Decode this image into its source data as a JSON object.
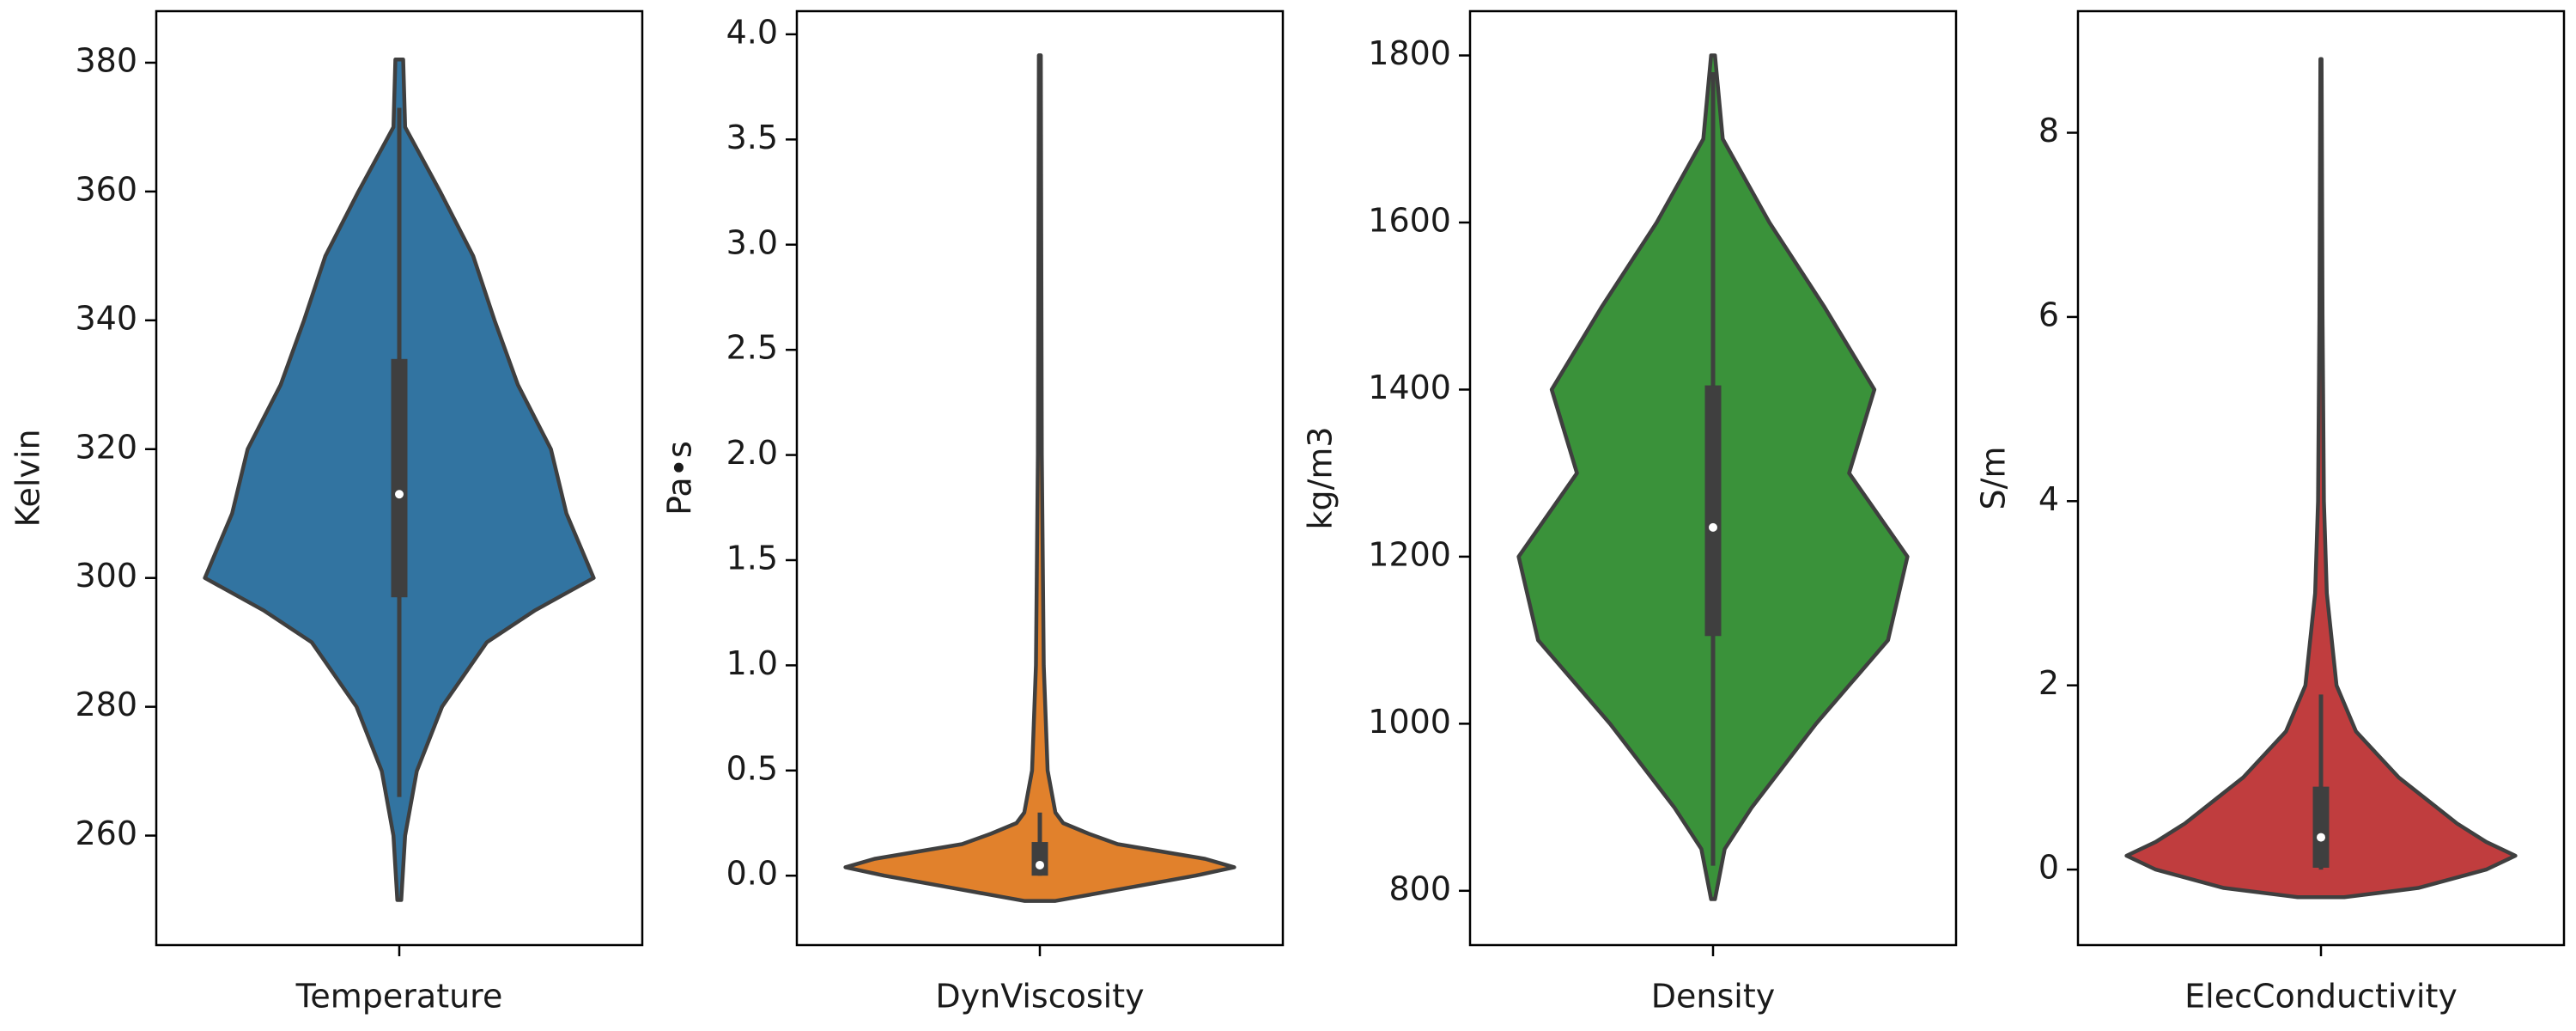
{
  "chart_data": [
    {
      "type": "violin",
      "ylabel": "Kelvin",
      "categories": [
        "Temperature"
      ],
      "color": "#3274a1",
      "ylim": [
        243,
        388
      ],
      "yticks": [
        260,
        280,
        300,
        320,
        340,
        360,
        380
      ],
      "violin": {
        "y": [
          250,
          260,
          270,
          280,
          290,
          295,
          300,
          310,
          320,
          330,
          340,
          350,
          360,
          370,
          380.5
        ],
        "density": [
          0.01,
          0.03,
          0.09,
          0.22,
          0.45,
          0.7,
          1.0,
          0.86,
          0.78,
          0.61,
          0.49,
          0.38,
          0.21,
          0.03,
          0.02
        ]
      },
      "box": {
        "min": 266,
        "q1": 297,
        "median": 313,
        "q3": 334,
        "max": 373
      }
    },
    {
      "type": "violin",
      "ylabel": "Pa•s",
      "categories": [
        "DynViscosity"
      ],
      "color": "#e1812c",
      "ylim": [
        -0.33,
        4.11
      ],
      "yticks": [
        {
          "value": 0,
          "label": "0.0"
        },
        0.5,
        {
          "value": 1,
          "label": "1.0"
        },
        1.5,
        {
          "value": 2,
          "label": "2.0"
        },
        2.5,
        {
          "value": 3,
          "label": "3.0"
        },
        3.5,
        {
          "value": 4,
          "label": "4.0"
        }
      ],
      "violin": {
        "y": [
          -0.12,
          -0.1,
          -0.05,
          0.0,
          0.04,
          0.08,
          0.15,
          0.2,
          0.25,
          0.3,
          0.5,
          1.0,
          2.0,
          3.9
        ],
        "density": [
          0.08,
          0.2,
          0.5,
          0.8,
          1.0,
          0.85,
          0.4,
          0.25,
          0.12,
          0.08,
          0.04,
          0.02,
          0.01,
          0.005
        ]
      },
      "box": {
        "min": 0.0,
        "q1": 0.0,
        "median": 0.05,
        "q3": 0.16,
        "max": 0.3
      }
    },
    {
      "type": "violin",
      "ylabel": "kg/m3",
      "categories": [
        "Density"
      ],
      "color": "#3a923a",
      "ylim": [
        735,
        1853
      ],
      "yticks": [
        800,
        1000,
        1200,
        1400,
        1600,
        1800
      ],
      "violin": {
        "y": [
          790,
          850,
          900,
          1000,
          1100,
          1200,
          1300,
          1400,
          1500,
          1600,
          1700,
          1800
        ],
        "density": [
          0.01,
          0.06,
          0.2,
          0.53,
          0.9,
          1.0,
          0.7,
          0.83,
          0.57,
          0.29,
          0.05,
          0.01
        ]
      },
      "box": {
        "min": 830,
        "q1": 1105,
        "median": 1235,
        "q3": 1405,
        "max": 1780
      }
    },
    {
      "type": "violin",
      "ylabel": "S/m",
      "categories": [
        "ElecConductivity"
      ],
      "color": "#c03d3e",
      "ylim": [
        -0.82,
        9.32
      ],
      "yticks": [
        0,
        2,
        4,
        6,
        8
      ],
      "violin": {
        "y": [
          -0.3,
          -0.2,
          0,
          0.15,
          0.3,
          0.5,
          0.75,
          1.0,
          1.5,
          2,
          3,
          4,
          6,
          8.8
        ],
        "density": [
          0.12,
          0.5,
          0.85,
          1.0,
          0.85,
          0.7,
          0.55,
          0.4,
          0.18,
          0.08,
          0.03,
          0.015,
          0.008,
          0.003
        ]
      },
      "box": {
        "min": 0,
        "q1": 0.02,
        "median": 0.35,
        "q3": 0.9,
        "max": 1.9
      }
    }
  ]
}
